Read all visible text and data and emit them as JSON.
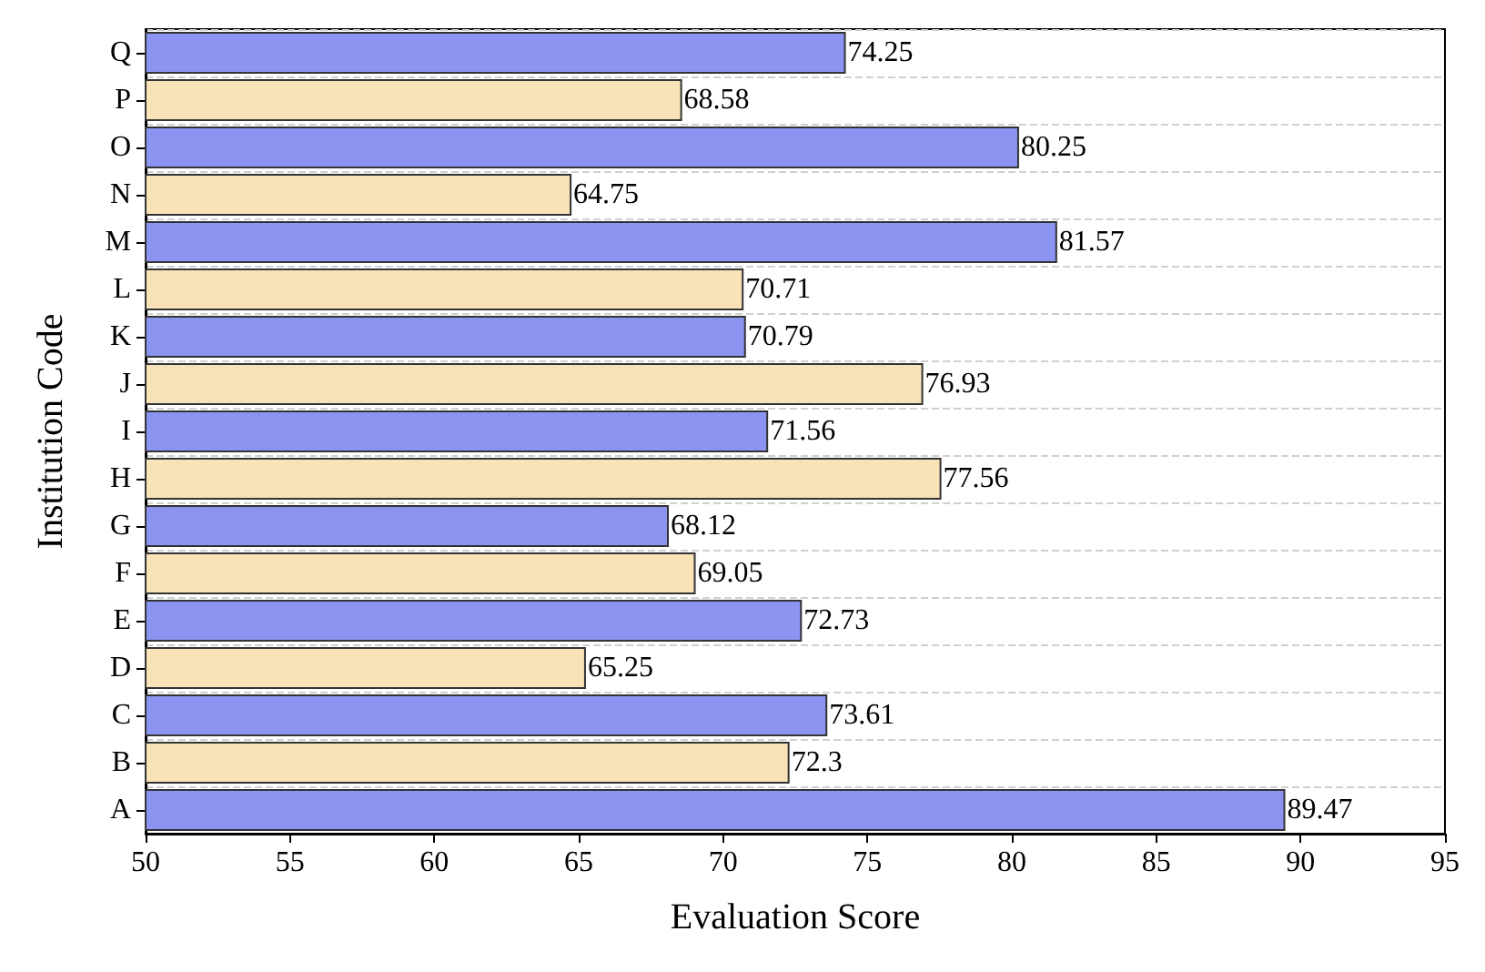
{
  "chart_data": {
    "type": "bar",
    "orientation": "horizontal",
    "xlabel": "Evaluation Score",
    "ylabel": "Institution Code",
    "categories": [
      "Q",
      "P",
      "O",
      "N",
      "M",
      "L",
      "K",
      "J",
      "I",
      "H",
      "G",
      "F",
      "E",
      "D",
      "C",
      "B",
      "A"
    ],
    "values": [
      74.25,
      68.58,
      80.25,
      64.75,
      81.57,
      70.71,
      70.79,
      76.93,
      71.56,
      77.56,
      68.12,
      69.05,
      72.73,
      65.25,
      73.61,
      72.3,
      89.47
    ],
    "colors": [
      "#8c94f2",
      "#f8e2b8",
      "#8c94f2",
      "#f8e2b8",
      "#8c94f2",
      "#f8e2b8",
      "#8c94f2",
      "#f8e2b8",
      "#8c94f2",
      "#f8e2b8",
      "#8c94f2",
      "#f8e2b8",
      "#8c94f2",
      "#f8e2b8",
      "#8c94f2",
      "#f8e2b8",
      "#8c94f2"
    ],
    "xlim": [
      50,
      95
    ],
    "xticks": [
      50,
      55,
      60,
      65,
      70,
      75,
      80,
      85,
      90,
      95
    ],
    "data_labels": true,
    "grid": "y"
  }
}
